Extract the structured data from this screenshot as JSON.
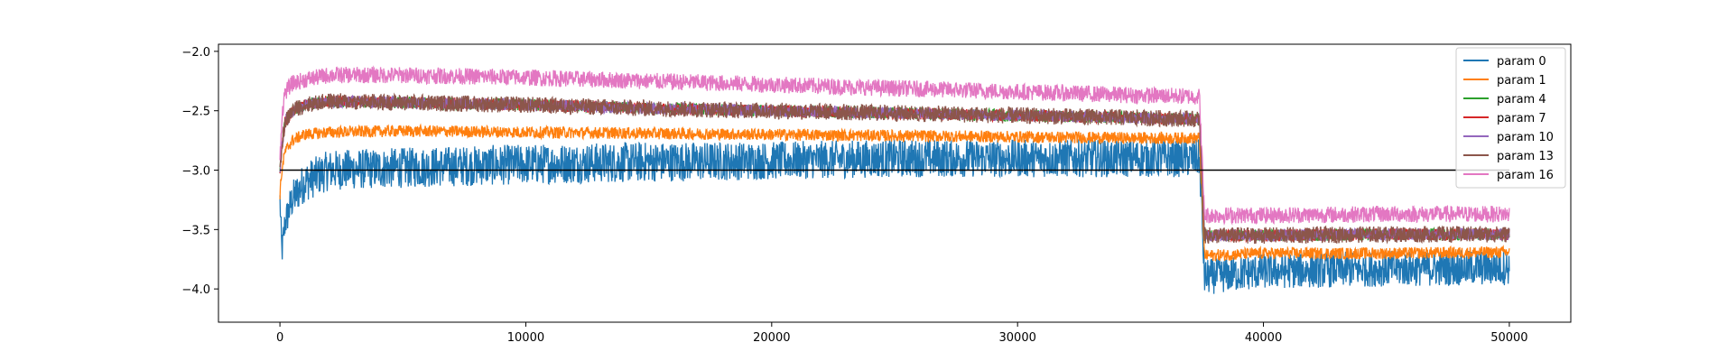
{
  "chart_data": {
    "type": "line",
    "title": "",
    "xlabel": "",
    "ylabel": "",
    "xlim": [
      -2500,
      52500
    ],
    "ylim": [
      -4.28,
      -1.94
    ],
    "xticks": [
      0,
      10000,
      20000,
      30000,
      40000,
      50000
    ],
    "xtick_labels": [
      "0",
      "10000",
      "20000",
      "30000",
      "40000",
      "50000"
    ],
    "yticks": [
      -2.0,
      -2.5,
      -3.0,
      -3.5,
      -4.0
    ],
    "ytick_labels": [
      "−2.0",
      "−2.5",
      "−3.0",
      "−3.5",
      "−4.0"
    ],
    "grid": false,
    "legend_position": "top-right",
    "reference_line": {
      "y": -3.0,
      "x_range": [
        0,
        50000
      ],
      "color": "#000000"
    },
    "series": [
      {
        "name": "param 0",
        "color": "#1f77b4",
        "x": [
          0,
          80,
          200,
          500,
          1000,
          2000,
          5000,
          10000,
          15000,
          20000,
          25000,
          30000,
          35000,
          37400,
          37600,
          40000,
          45000,
          50000
        ],
        "y_mean": [
          -3.25,
          -3.7,
          -3.45,
          -3.25,
          -3.1,
          -3.0,
          -2.98,
          -2.95,
          -2.93,
          -2.92,
          -2.9,
          -2.9,
          -2.9,
          -2.9,
          -3.9,
          -3.85,
          -3.83,
          -3.82
        ],
        "y_band": [
          0.12,
          0.12,
          0.14,
          0.16,
          0.17,
          0.17,
          0.17,
          0.17,
          0.17,
          0.16,
          0.16,
          0.16,
          0.16,
          0.16,
          0.15,
          0.15,
          0.15,
          0.15
        ]
      },
      {
        "name": "param 1",
        "color": "#ff7f0e",
        "x": [
          0,
          80,
          200,
          500,
          1000,
          2000,
          5000,
          10000,
          15000,
          20000,
          25000,
          30000,
          35000,
          37400,
          37600,
          40000,
          45000,
          50000
        ],
        "y_mean": [
          -3.2,
          -3.0,
          -2.85,
          -2.75,
          -2.7,
          -2.68,
          -2.67,
          -2.68,
          -2.69,
          -2.7,
          -2.71,
          -2.72,
          -2.73,
          -2.73,
          -3.72,
          -3.7,
          -3.7,
          -3.69
        ],
        "y_band": [
          0.05,
          0.05,
          0.05,
          0.05,
          0.05,
          0.05,
          0.05,
          0.05,
          0.05,
          0.05,
          0.05,
          0.05,
          0.05,
          0.05,
          0.05,
          0.05,
          0.05,
          0.05
        ]
      },
      {
        "name": "param 4",
        "color": "#2ca02c",
        "x": [
          0,
          80,
          200,
          500,
          1000,
          2000,
          5000,
          10000,
          15000,
          20000,
          25000,
          30000,
          35000,
          37400,
          37600,
          40000,
          45000,
          50000
        ],
        "y_mean": [
          -3.0,
          -2.8,
          -2.6,
          -2.5,
          -2.45,
          -2.42,
          -2.43,
          -2.45,
          -2.48,
          -2.5,
          -2.52,
          -2.54,
          -2.56,
          -2.57,
          -3.55,
          -3.55,
          -3.54,
          -3.54
        ],
        "y_band": [
          0.05,
          0.05,
          0.05,
          0.05,
          0.05,
          0.05,
          0.05,
          0.05,
          0.05,
          0.05,
          0.05,
          0.05,
          0.05,
          0.05,
          0.05,
          0.05,
          0.05,
          0.05
        ]
      },
      {
        "name": "param 7",
        "color": "#d62728",
        "x": [
          0,
          80,
          200,
          500,
          1000,
          2000,
          5000,
          10000,
          15000,
          20000,
          25000,
          30000,
          35000,
          37400,
          37600,
          40000,
          45000,
          50000
        ],
        "y_mean": [
          -3.0,
          -2.8,
          -2.6,
          -2.5,
          -2.45,
          -2.42,
          -2.43,
          -2.45,
          -2.48,
          -2.5,
          -2.52,
          -2.54,
          -2.56,
          -2.57,
          -3.55,
          -3.55,
          -3.54,
          -3.54
        ],
        "y_band": [
          0.05,
          0.05,
          0.05,
          0.05,
          0.05,
          0.05,
          0.05,
          0.05,
          0.05,
          0.05,
          0.05,
          0.05,
          0.05,
          0.05,
          0.05,
          0.05,
          0.05,
          0.05
        ]
      },
      {
        "name": "param 10",
        "color": "#9467bd",
        "x": [
          0,
          80,
          200,
          500,
          1000,
          2000,
          5000,
          10000,
          15000,
          20000,
          25000,
          30000,
          35000,
          37400,
          37600,
          40000,
          45000,
          50000
        ],
        "y_mean": [
          -3.0,
          -2.8,
          -2.6,
          -2.5,
          -2.45,
          -2.42,
          -2.43,
          -2.45,
          -2.48,
          -2.5,
          -2.52,
          -2.54,
          -2.56,
          -2.57,
          -3.55,
          -3.55,
          -3.54,
          -3.54
        ],
        "y_band": [
          0.05,
          0.05,
          0.05,
          0.05,
          0.05,
          0.05,
          0.05,
          0.05,
          0.05,
          0.05,
          0.05,
          0.05,
          0.05,
          0.05,
          0.05,
          0.05,
          0.05,
          0.05
        ]
      },
      {
        "name": "param 13",
        "color": "#8c564b",
        "x": [
          0,
          80,
          200,
          500,
          1000,
          2000,
          5000,
          10000,
          15000,
          20000,
          25000,
          30000,
          35000,
          37400,
          37600,
          40000,
          45000,
          50000
        ],
        "y_mean": [
          -3.0,
          -2.8,
          -2.6,
          -2.5,
          -2.45,
          -2.42,
          -2.43,
          -2.45,
          -2.48,
          -2.5,
          -2.52,
          -2.54,
          -2.56,
          -2.57,
          -3.55,
          -3.55,
          -3.54,
          -3.54
        ],
        "y_band": [
          0.07,
          0.07,
          0.07,
          0.07,
          0.07,
          0.07,
          0.07,
          0.07,
          0.07,
          0.07,
          0.07,
          0.07,
          0.07,
          0.07,
          0.07,
          0.07,
          0.07,
          0.07
        ]
      },
      {
        "name": "param 16",
        "color": "#e377c2",
        "x": [
          0,
          80,
          200,
          500,
          1000,
          2000,
          5000,
          10000,
          15000,
          20000,
          25000,
          30000,
          35000,
          37400,
          37600,
          40000,
          45000,
          50000
        ],
        "y_mean": [
          -2.9,
          -2.55,
          -2.35,
          -2.27,
          -2.24,
          -2.2,
          -2.2,
          -2.22,
          -2.25,
          -2.28,
          -2.31,
          -2.34,
          -2.37,
          -2.38,
          -3.38,
          -3.38,
          -3.37,
          -3.37
        ],
        "y_band": [
          0.07,
          0.07,
          0.07,
          0.07,
          0.07,
          0.07,
          0.07,
          0.07,
          0.07,
          0.07,
          0.07,
          0.07,
          0.07,
          0.07,
          0.07,
          0.07,
          0.07,
          0.07
        ]
      }
    ]
  }
}
